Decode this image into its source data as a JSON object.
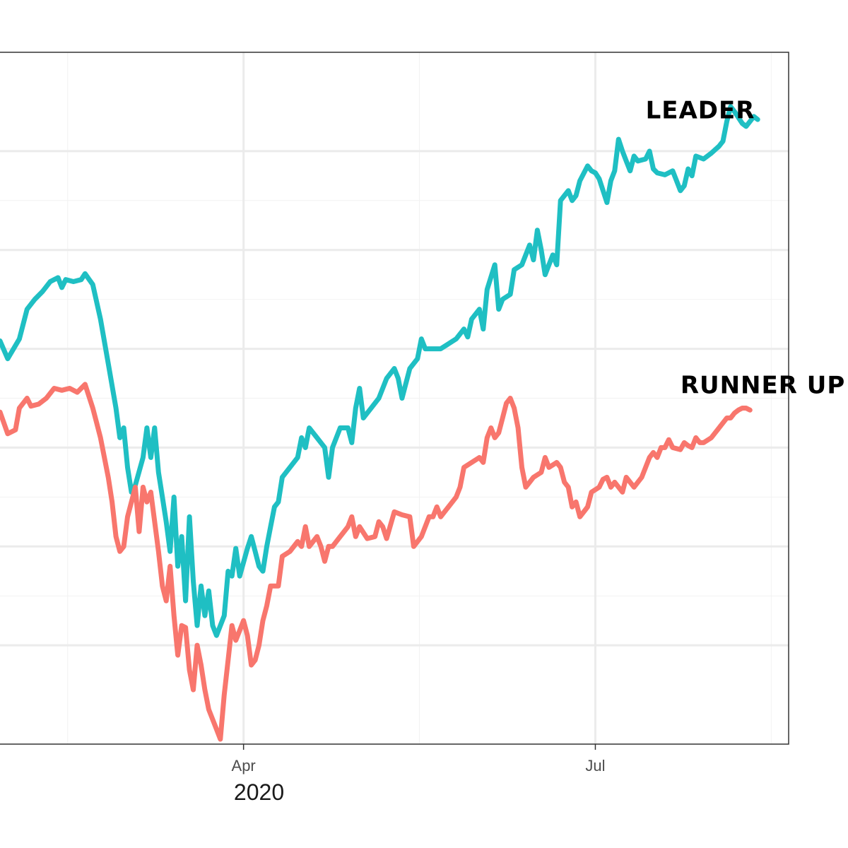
{
  "chart_data": {
    "type": "line",
    "xlabel": "2020",
    "ylabel": "",
    "x_ticks": [
      {
        "label": "Apr",
        "value": 91
      },
      {
        "label": "Jul",
        "value": 182
      }
    ],
    "xlim": [
      28,
      232
    ],
    "ylim": [
      0,
      7.0
    ],
    "y_major_gridlines": [
      1,
      2,
      3,
      4,
      5,
      6
    ],
    "grid": true,
    "legend": "none",
    "series": [
      {
        "name": "LEADER",
        "color": "#1fbfc3",
        "points": [
          [
            28,
            4.08
          ],
          [
            30,
            3.9
          ],
          [
            33,
            4.1
          ],
          [
            35,
            4.4
          ],
          [
            37,
            4.5
          ],
          [
            39,
            4.58
          ],
          [
            41,
            4.68
          ],
          [
            43,
            4.72
          ],
          [
            44,
            4.62
          ],
          [
            45,
            4.7
          ],
          [
            47,
            4.68
          ],
          [
            49,
            4.7
          ],
          [
            50,
            4.76
          ],
          [
            52,
            4.65
          ],
          [
            54,
            4.3
          ],
          [
            56,
            3.85
          ],
          [
            58,
            3.4
          ],
          [
            59,
            3.1
          ],
          [
            60,
            3.2
          ],
          [
            61,
            2.8
          ],
          [
            62,
            2.55
          ],
          [
            63,
            2.62
          ],
          [
            65,
            2.9
          ],
          [
            66,
            3.2
          ],
          [
            67,
            2.9
          ],
          [
            68,
            3.2
          ],
          [
            69,
            2.75
          ],
          [
            70,
            2.5
          ],
          [
            71,
            2.25
          ],
          [
            72,
            1.95
          ],
          [
            73,
            2.5
          ],
          [
            74,
            1.8
          ],
          [
            75,
            2.1
          ],
          [
            76,
            1.45
          ],
          [
            77,
            2.3
          ],
          [
            78,
            1.65
          ],
          [
            79,
            1.2
          ],
          [
            80,
            1.6
          ],
          [
            81,
            1.3
          ],
          [
            82,
            1.55
          ],
          [
            83,
            1.2
          ],
          [
            84,
            1.1
          ],
          [
            86,
            1.3
          ],
          [
            87,
            1.75
          ],
          [
            88,
            1.7
          ],
          [
            89,
            1.98
          ],
          [
            90,
            1.7
          ],
          [
            92,
            1.98
          ],
          [
            93,
            2.1
          ],
          [
            94,
            1.95
          ],
          [
            95,
            1.8
          ],
          [
            96,
            1.75
          ],
          [
            97,
            2.0
          ],
          [
            98,
            2.2
          ],
          [
            99,
            2.4
          ],
          [
            100,
            2.45
          ],
          [
            101,
            2.7
          ],
          [
            103,
            2.8
          ],
          [
            105,
            2.9
          ],
          [
            106,
            3.1
          ],
          [
            107,
            3.0
          ],
          [
            108,
            3.2
          ],
          [
            110,
            3.1
          ],
          [
            112,
            3.0
          ],
          [
            113,
            2.7
          ],
          [
            114,
            3.0
          ],
          [
            116,
            3.2
          ],
          [
            118,
            3.2
          ],
          [
            119,
            3.05
          ],
          [
            120,
            3.4
          ],
          [
            121,
            3.6
          ],
          [
            122,
            3.3
          ],
          [
            124,
            3.4
          ],
          [
            126,
            3.5
          ],
          [
            128,
            3.7
          ],
          [
            130,
            3.8
          ],
          [
            131,
            3.7
          ],
          [
            132,
            3.5
          ],
          [
            134,
            3.8
          ],
          [
            136,
            3.9
          ],
          [
            137,
            4.1
          ],
          [
            138,
            4.0
          ],
          [
            140,
            4.0
          ],
          [
            142,
            4.0
          ],
          [
            144,
            4.05
          ],
          [
            146,
            4.1
          ],
          [
            148,
            4.2
          ],
          [
            149,
            4.12
          ],
          [
            150,
            4.3
          ],
          [
            152,
            4.4
          ],
          [
            153,
            4.2
          ],
          [
            154,
            4.6
          ],
          [
            156,
            4.85
          ],
          [
            157,
            4.4
          ],
          [
            158,
            4.5
          ],
          [
            160,
            4.55
          ],
          [
            161,
            4.8
          ],
          [
            163,
            4.85
          ],
          [
            165,
            5.05
          ],
          [
            166,
            4.9
          ],
          [
            167,
            5.2
          ],
          [
            168,
            5.0
          ],
          [
            169,
            4.75
          ],
          [
            170,
            4.85
          ],
          [
            171,
            4.95
          ],
          [
            172,
            4.85
          ],
          [
            173,
            5.5
          ],
          [
            175,
            5.6
          ],
          [
            176,
            5.5
          ],
          [
            177,
            5.55
          ],
          [
            178,
            5.7
          ],
          [
            180,
            5.85
          ],
          [
            181,
            5.8
          ],
          [
            182,
            5.78
          ],
          [
            183,
            5.72
          ],
          [
            184,
            5.6
          ],
          [
            185,
            5.48
          ],
          [
            186,
            5.7
          ],
          [
            187,
            5.8
          ],
          [
            188,
            6.12
          ],
          [
            189,
            6.0
          ],
          [
            190,
            5.9
          ],
          [
            191,
            5.8
          ],
          [
            192,
            5.95
          ],
          [
            193,
            5.9
          ],
          [
            195,
            5.92
          ],
          [
            196,
            6.0
          ],
          [
            197,
            5.82
          ],
          [
            198,
            5.78
          ],
          [
            200,
            5.76
          ],
          [
            202,
            5.8
          ],
          [
            203,
            5.7
          ],
          [
            204,
            5.6
          ],
          [
            205,
            5.65
          ],
          [
            206,
            5.82
          ],
          [
            207,
            5.75
          ],
          [
            208,
            5.95
          ],
          [
            210,
            5.92
          ],
          [
            212,
            5.98
          ],
          [
            214,
            6.05
          ],
          [
            215,
            6.1
          ],
          [
            216,
            6.3
          ],
          [
            217,
            6.45
          ],
          [
            218,
            6.4
          ],
          [
            220,
            6.28
          ],
          [
            221,
            6.25
          ],
          [
            222,
            6.3
          ],
          [
            223,
            6.35
          ],
          [
            224,
            6.32
          ]
        ]
      },
      {
        "name": "RUNNER UP",
        "color": "#f8766d",
        "points": [
          [
            28,
            3.36
          ],
          [
            30,
            3.14
          ],
          [
            32,
            3.18
          ],
          [
            33,
            3.4
          ],
          [
            35,
            3.5
          ],
          [
            36,
            3.42
          ],
          [
            38,
            3.44
          ],
          [
            40,
            3.5
          ],
          [
            42,
            3.6
          ],
          [
            44,
            3.58
          ],
          [
            46,
            3.6
          ],
          [
            48,
            3.56
          ],
          [
            49,
            3.6
          ],
          [
            50,
            3.64
          ],
          [
            52,
            3.4
          ],
          [
            53,
            3.25
          ],
          [
            54,
            3.1
          ],
          [
            56,
            2.7
          ],
          [
            57,
            2.45
          ],
          [
            58,
            2.1
          ],
          [
            59,
            1.95
          ],
          [
            60,
            2.0
          ],
          [
            61,
            2.3
          ],
          [
            63,
            2.6
          ],
          [
            64,
            2.15
          ],
          [
            65,
            2.6
          ],
          [
            66,
            2.45
          ],
          [
            67,
            2.55
          ],
          [
            69,
            1.95
          ],
          [
            70,
            1.6
          ],
          [
            71,
            1.45
          ],
          [
            72,
            1.8
          ],
          [
            73,
            1.3
          ],
          [
            74,
            0.9
          ],
          [
            75,
            1.2
          ],
          [
            76,
            1.18
          ],
          [
            77,
            0.75
          ],
          [
            78,
            0.55
          ],
          [
            79,
            1.0
          ],
          [
            80,
            0.8
          ],
          [
            81,
            0.55
          ],
          [
            82,
            0.35
          ],
          [
            83,
            0.25
          ],
          [
            84,
            0.15
          ],
          [
            85,
            0.05
          ],
          [
            86,
            0.5
          ],
          [
            87,
            0.85
          ],
          [
            88,
            1.2
          ],
          [
            89,
            1.05
          ],
          [
            90,
            1.15
          ],
          [
            91,
            1.25
          ],
          [
            92,
            1.1
          ],
          [
            93,
            0.8
          ],
          [
            94,
            0.85
          ],
          [
            95,
            1.0
          ],
          [
            96,
            1.25
          ],
          [
            97,
            1.4
          ],
          [
            98,
            1.6
          ],
          [
            100,
            1.6
          ],
          [
            101,
            1.9
          ],
          [
            103,
            1.95
          ],
          [
            105,
            2.05
          ],
          [
            106,
            2.0
          ],
          [
            107,
            2.2
          ],
          [
            108,
            2.0
          ],
          [
            110,
            2.1
          ],
          [
            111,
            2.0
          ],
          [
            112,
            1.85
          ],
          [
            113,
            2.0
          ],
          [
            114,
            2.0
          ],
          [
            116,
            2.1
          ],
          [
            118,
            2.2
          ],
          [
            119,
            2.3
          ],
          [
            120,
            2.1
          ],
          [
            121,
            2.2
          ],
          [
            123,
            2.08
          ],
          [
            125,
            2.1
          ],
          [
            126,
            2.25
          ],
          [
            127,
            2.2
          ],
          [
            128,
            2.08
          ],
          [
            130,
            2.35
          ],
          [
            132,
            2.32
          ],
          [
            134,
            2.3
          ],
          [
            135,
            2.0
          ],
          [
            137,
            2.1
          ],
          [
            139,
            2.3
          ],
          [
            140,
            2.3
          ],
          [
            141,
            2.4
          ],
          [
            142,
            2.3
          ],
          [
            144,
            2.4
          ],
          [
            146,
            2.5
          ],
          [
            147,
            2.6
          ],
          [
            148,
            2.8
          ],
          [
            150,
            2.85
          ],
          [
            152,
            2.9
          ],
          [
            153,
            2.85
          ],
          [
            154,
            3.1
          ],
          [
            155,
            3.2
          ],
          [
            156,
            3.1
          ],
          [
            157,
            3.15
          ],
          [
            158,
            3.3
          ],
          [
            159,
            3.45
          ],
          [
            160,
            3.5
          ],
          [
            161,
            3.4
          ],
          [
            162,
            3.2
          ],
          [
            163,
            2.8
          ],
          [
            164,
            2.6
          ],
          [
            165,
            2.65
          ],
          [
            166,
            2.7
          ],
          [
            168,
            2.75
          ],
          [
            169,
            2.9
          ],
          [
            170,
            2.8
          ],
          [
            172,
            2.85
          ],
          [
            173,
            2.8
          ],
          [
            174,
            2.65
          ],
          [
            175,
            2.6
          ],
          [
            176,
            2.4
          ],
          [
            177,
            2.45
          ],
          [
            178,
            2.3
          ],
          [
            179,
            2.35
          ],
          [
            180,
            2.4
          ],
          [
            181,
            2.55
          ],
          [
            183,
            2.6
          ],
          [
            184,
            2.68
          ],
          [
            185,
            2.7
          ],
          [
            186,
            2.6
          ],
          [
            187,
            2.65
          ],
          [
            188,
            2.6
          ],
          [
            189,
            2.55
          ],
          [
            190,
            2.7
          ],
          [
            191,
            2.65
          ],
          [
            192,
            2.6
          ],
          [
            194,
            2.7
          ],
          [
            195,
            2.8
          ],
          [
            196,
            2.9
          ],
          [
            197,
            2.95
          ],
          [
            198,
            2.9
          ],
          [
            199,
            3.0
          ],
          [
            200,
            3.0
          ],
          [
            201,
            3.08
          ],
          [
            202,
            3.0
          ],
          [
            204,
            2.98
          ],
          [
            205,
            3.05
          ],
          [
            206,
            3.02
          ],
          [
            207,
            3.0
          ],
          [
            208,
            3.1
          ],
          [
            209,
            3.05
          ],
          [
            210,
            3.05
          ],
          [
            212,
            3.1
          ],
          [
            214,
            3.2
          ],
          [
            215,
            3.25
          ],
          [
            216,
            3.3
          ],
          [
            217,
            3.3
          ],
          [
            218,
            3.35
          ],
          [
            219,
            3.38
          ],
          [
            220,
            3.4
          ],
          [
            221,
            3.4
          ],
          [
            222,
            3.38
          ]
        ]
      }
    ],
    "annotations": [
      {
        "text": "LEADER",
        "series": 0,
        "anchor": [
          195,
          6.33
        ]
      },
      {
        "text": "RUNNER UP",
        "series": 1,
        "anchor": [
          204,
          3.55
        ]
      }
    ]
  }
}
